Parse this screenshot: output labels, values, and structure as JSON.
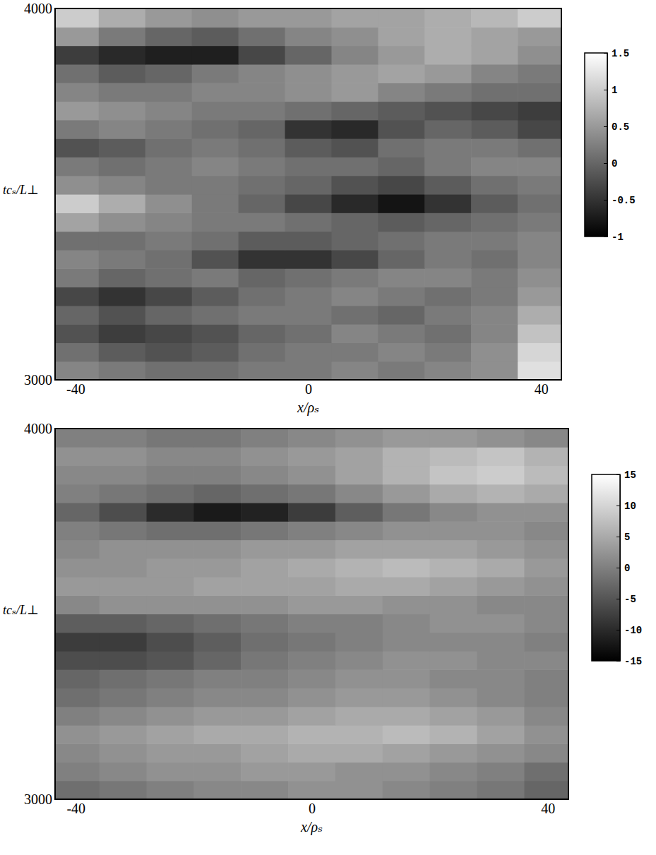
{
  "chart_data": [
    {
      "type": "heatmap",
      "x_label": "x/ρₛ",
      "y_label": "tcₛ/L⊥",
      "xlim": [
        -43.5,
        43.5
      ],
      "xticks": [
        -40,
        0,
        40
      ],
      "ylim": [
        3000,
        4000
      ],
      "yticks": [
        3000,
        4000
      ],
      "x": [
        -40,
        -32,
        -24,
        -16,
        -8,
        0,
        8,
        16,
        24,
        32,
        40
      ],
      "y": [
        3025,
        3075,
        3125,
        3175,
        3225,
        3275,
        3325,
        3375,
        3425,
        3475,
        3525,
        3575,
        3625,
        3675,
        3725,
        3775,
        3825,
        3875,
        3925,
        3975
      ],
      "values": [
        [
          0.3,
          0.2,
          0.1,
          0.1,
          0.2,
          0.2,
          0.3,
          0.2,
          0.3,
          0.4,
          1.2
        ],
        [
          0.1,
          -0.1,
          -0.2,
          -0.1,
          0.1,
          0.2,
          0.2,
          0.3,
          0.2,
          0.4,
          1.1
        ],
        [
          -0.2,
          -0.4,
          -0.3,
          -0.2,
          0.0,
          0.1,
          0.3,
          0.2,
          0.1,
          0.3,
          0.9
        ],
        [
          0.0,
          -0.2,
          0.0,
          0.1,
          0.2,
          0.2,
          0.1,
          0.0,
          0.2,
          0.3,
          0.7
        ],
        [
          -0.3,
          -0.5,
          -0.3,
          -0.1,
          0.1,
          0.2,
          0.3,
          0.2,
          0.1,
          0.2,
          0.5
        ],
        [
          0.2,
          0.0,
          0.1,
          0.2,
          0.0,
          0.1,
          0.2,
          0.3,
          0.3,
          0.2,
          0.4
        ],
        [
          0.3,
          0.2,
          0.1,
          -0.2,
          -0.5,
          -0.5,
          -0.3,
          0.0,
          0.2,
          0.1,
          0.3
        ],
        [
          0.1,
          0.1,
          0.2,
          0.1,
          -0.1,
          -0.1,
          0.0,
          0.1,
          0.2,
          0.2,
          0.3
        ],
        [
          0.6,
          0.4,
          0.3,
          0.2,
          0.2,
          0.1,
          0.0,
          -0.1,
          0.0,
          0.1,
          0.2
        ],
        [
          1.0,
          0.7,
          0.4,
          0.2,
          0.0,
          -0.3,
          -0.6,
          -0.8,
          -0.5,
          -0.1,
          0.1
        ],
        [
          0.4,
          0.3,
          0.2,
          0.2,
          0.1,
          0.0,
          -0.2,
          -0.3,
          -0.1,
          0.1,
          0.2
        ],
        [
          0.2,
          0.1,
          0.2,
          0.3,
          0.2,
          0.1,
          0.1,
          0.0,
          0.2,
          0.3,
          0.3
        ],
        [
          -0.2,
          -0.1,
          0.1,
          0.2,
          0.1,
          -0.1,
          -0.2,
          0.1,
          0.2,
          0.2,
          0.1
        ],
        [
          0.2,
          0.3,
          0.2,
          0.1,
          0.0,
          -0.5,
          -0.6,
          -0.2,
          0.0,
          -0.1,
          -0.3
        ],
        [
          0.5,
          0.4,
          0.3,
          0.2,
          0.2,
          0.1,
          0.0,
          -0.1,
          -0.2,
          -0.3,
          -0.4
        ],
        [
          0.3,
          0.2,
          0.2,
          0.3,
          0.3,
          0.4,
          0.5,
          0.3,
          0.2,
          0.1,
          0.1
        ],
        [
          0.1,
          -0.1,
          0.0,
          0.2,
          0.3,
          0.4,
          0.5,
          0.6,
          0.5,
          0.3,
          0.2
        ],
        [
          -0.4,
          -0.6,
          -0.7,
          -0.7,
          -0.3,
          0.0,
          0.3,
          0.5,
          0.7,
          0.6,
          0.4
        ],
        [
          0.5,
          0.2,
          0.0,
          -0.1,
          0.1,
          0.3,
          0.4,
          0.6,
          0.7,
          0.6,
          0.5
        ],
        [
          1.0,
          0.7,
          0.5,
          0.4,
          0.5,
          0.5,
          0.6,
          0.6,
          0.7,
          0.8,
          1.0
        ]
      ],
      "color_range": [
        -1,
        1.5
      ],
      "color_ticks": [
        -1,
        -0.5,
        0,
        0.5,
        1,
        1.5
      ]
    },
    {
      "type": "heatmap",
      "x_label": "x/ρₛ",
      "y_label": "tcₛ/L⊥",
      "xlim": [
        -43.5,
        43.5
      ],
      "xticks": [
        -40,
        0,
        40
      ],
      "ylim": [
        3000,
        4000
      ],
      "yticks": [
        3000,
        4000
      ],
      "x": [
        -40,
        -32,
        -24,
        -16,
        -8,
        0,
        8,
        16,
        24,
        32,
        40
      ],
      "y": [
        3025,
        3075,
        3125,
        3175,
        3225,
        3275,
        3325,
        3375,
        3425,
        3475,
        3525,
        3575,
        3625,
        3675,
        3725,
        3775,
        3825,
        3875,
        3925,
        3975
      ],
      "values": [
        [
          -2,
          -1,
          0,
          1,
          1,
          2,
          2,
          1,
          0,
          -1,
          -3
        ],
        [
          0,
          1,
          2,
          2,
          3,
          3,
          2,
          2,
          1,
          0,
          -2
        ],
        [
          1,
          2,
          3,
          3,
          4,
          5,
          5,
          4,
          3,
          2,
          1
        ],
        [
          2,
          3,
          4,
          5,
          5,
          6,
          6,
          7,
          6,
          4,
          2
        ],
        [
          0,
          1,
          2,
          3,
          3,
          4,
          5,
          5,
          4,
          3,
          1
        ],
        [
          -2,
          -1,
          0,
          1,
          1,
          2,
          3,
          3,
          2,
          1,
          0
        ],
        [
          -3,
          -2,
          -1,
          0,
          0,
          1,
          2,
          2,
          1,
          1,
          0
        ],
        [
          -6,
          -6,
          -5,
          -3,
          -1,
          0,
          1,
          2,
          2,
          1,
          1
        ],
        [
          -8,
          -8,
          -6,
          -4,
          -2,
          -1,
          0,
          1,
          1,
          1,
          0
        ],
        [
          -4,
          -4,
          -3,
          -2,
          -1,
          0,
          0,
          1,
          2,
          2,
          1
        ],
        [
          1,
          2,
          2,
          2,
          2,
          3,
          3,
          2,
          2,
          1,
          1
        ],
        [
          3,
          3,
          3,
          4,
          4,
          4,
          5,
          5,
          4,
          3,
          2
        ],
        [
          2,
          2,
          3,
          3,
          4,
          5,
          6,
          7,
          6,
          5,
          3
        ],
        [
          1,
          2,
          2,
          2,
          3,
          3,
          4,
          4,
          4,
          3,
          2
        ],
        [
          0,
          -1,
          -2,
          -2,
          -1,
          0,
          1,
          2,
          2,
          2,
          1
        ],
        [
          -3,
          -6,
          -10,
          -12,
          -11,
          -8,
          -4,
          -1,
          1,
          2,
          2
        ],
        [
          0,
          -1,
          -2,
          -3,
          -2,
          -1,
          1,
          3,
          5,
          6,
          5
        ],
        [
          1,
          1,
          0,
          0,
          1,
          2,
          4,
          6,
          8,
          9,
          7
        ],
        [
          2,
          2,
          1,
          1,
          2,
          3,
          4,
          6,
          7,
          8,
          6
        ],
        [
          0,
          0,
          -1,
          -1,
          0,
          1,
          2,
          3,
          3,
          2,
          1
        ]
      ],
      "color_range": [
        -15,
        15
      ],
      "color_ticks": [
        -15,
        -10,
        -5,
        0,
        5,
        10,
        15
      ]
    }
  ]
}
